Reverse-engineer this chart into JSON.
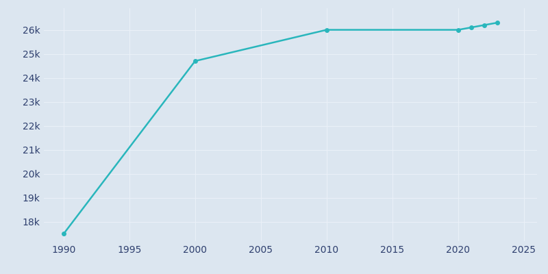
{
  "years": [
    1990,
    2000,
    2010,
    2020,
    2021,
    2022,
    2023
  ],
  "population": [
    17500,
    24700,
    26000,
    26000,
    26100,
    26200,
    26300
  ],
  "line_color": "#29b6bc",
  "marker_color": "#29b6bc",
  "background_color": "#dce6f0",
  "plot_background_color": "#dce6f0",
  "grid_color": "#eaf0f8",
  "tick_label_color": "#2e3f6e",
  "xlim": [
    1988.5,
    2026
  ],
  "ylim": [
    17200,
    26900
  ],
  "xticks": [
    1990,
    1995,
    2000,
    2005,
    2010,
    2015,
    2020,
    2025
  ],
  "yticks": [
    18000,
    19000,
    20000,
    21000,
    22000,
    23000,
    24000,
    25000,
    26000
  ],
  "ytick_labels": [
    "18k",
    "19k",
    "20k",
    "21k",
    "22k",
    "23k",
    "24k",
    "25k",
    "26k"
  ],
  "linewidth": 1.8,
  "markersize": 4
}
